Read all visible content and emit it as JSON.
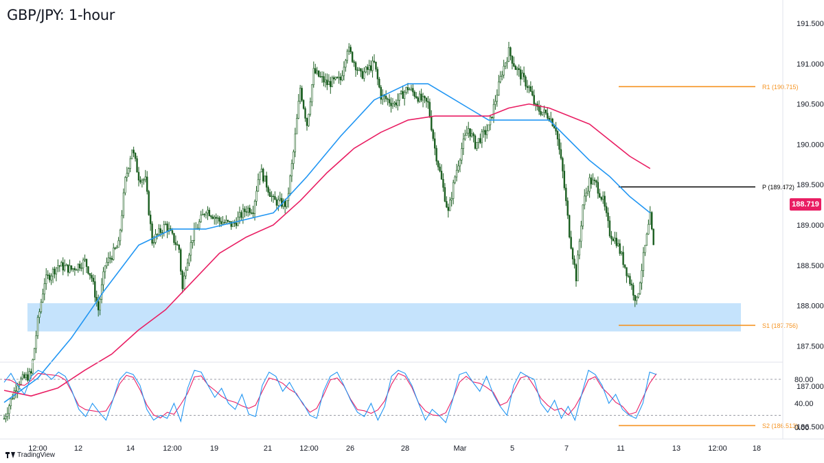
{
  "title": "GBP/JPY: 1-hour",
  "watermark_text": "TradingView",
  "current_price": "188.719",
  "colors": {
    "candle": "#1b5e20",
    "ema_fast": "#2196f3",
    "ema_slow": "#e91e63",
    "pivot_orange": "#f59321",
    "pivot_black": "#000000",
    "zone": "#bbdefb",
    "stoch_k": "#2196f3",
    "stoch_d": "#e91e63"
  },
  "chart_data": {
    "type": "candlestick",
    "symbol": "GBP/JPY",
    "timeframe": "1-hour",
    "y_axis": {
      "ticks": [
        "191.500",
        "191.000",
        "190.500",
        "190.000",
        "189.500",
        "189.000",
        "188.500",
        "188.000",
        "187.500",
        "187.000",
        "186.500"
      ],
      "range": [
        186.35,
        191.75
      ]
    },
    "x_axis": {
      "ticks": [
        "12:00",
        "12",
        "14",
        "12:00",
        "19",
        "21",
        "12:00",
        "26",
        "28",
        "Mar",
        "5",
        "7",
        "11",
        "13",
        "12:00",
        "18"
      ]
    },
    "levels": [
      {
        "label": "R1 (190.715)",
        "value": 190.715,
        "color": "orange"
      },
      {
        "label": "P (189.472)",
        "value": 189.472,
        "color": "black"
      },
      {
        "label": "S1 (187.756)",
        "value": 187.756,
        "color": "orange"
      },
      {
        "label": "S2 (186.513)",
        "value": 186.513,
        "color": "orange"
      }
    ],
    "support_zone": {
      "low": 187.68,
      "high": 188.03
    },
    "price_path": [
      [
        0,
        186.6
      ],
      [
        2,
        187.05
      ],
      [
        4,
        187.15
      ],
      [
        5,
        187.8
      ],
      [
        6,
        188.3
      ],
      [
        8,
        188.5
      ],
      [
        10,
        188.45
      ],
      [
        12,
        188.55
      ],
      [
        13,
        188.35
      ],
      [
        14,
        187.95
      ],
      [
        15,
        188.5
      ],
      [
        17,
        188.75
      ],
      [
        18,
        189.55
      ],
      [
        19,
        189.95
      ],
      [
        20,
        189.6
      ],
      [
        21,
        189.55
      ],
      [
        22,
        188.8
      ],
      [
        24,
        189.0
      ],
      [
        26,
        188.7
      ],
      [
        26.5,
        188.2
      ],
      [
        27,
        188.5
      ],
      [
        28,
        188.85
      ],
      [
        30,
        189.2
      ],
      [
        32,
        189.05
      ],
      [
        34,
        189.0
      ],
      [
        36,
        189.2
      ],
      [
        37,
        189.2
      ],
      [
        38,
        189.7
      ],
      [
        40,
        189.3
      ],
      [
        42,
        189.25
      ],
      [
        43,
        189.9
      ],
      [
        44,
        190.7
      ],
      [
        45,
        190.25
      ],
      [
        46,
        190.9
      ],
      [
        48,
        190.75
      ],
      [
        50,
        190.8
      ],
      [
        51,
        191.2
      ],
      [
        53,
        190.85
      ],
      [
        55,
        191.0
      ],
      [
        56,
        190.6
      ],
      [
        58,
        190.5
      ],
      [
        60,
        190.7
      ],
      [
        62,
        190.55
      ],
      [
        63,
        190.5
      ],
      [
        64,
        189.95
      ],
      [
        66,
        189.15
      ],
      [
        67,
        189.6
      ],
      [
        68,
        189.95
      ],
      [
        69,
        190.2
      ],
      [
        70,
        190.0
      ],
      [
        72,
        190.2
      ],
      [
        74,
        190.9
      ],
      [
        75,
        191.15
      ],
      [
        76,
        190.95
      ],
      [
        78,
        190.7
      ],
      [
        79,
        190.45
      ],
      [
        81,
        190.35
      ],
      [
        82,
        190.2
      ],
      [
        83,
        189.65
      ],
      [
        84,
        188.9
      ],
      [
        85,
        188.35
      ],
      [
        86,
        189.25
      ],
      [
        87,
        189.55
      ],
      [
        88,
        189.5
      ],
      [
        89,
        189.3
      ],
      [
        90,
        188.9
      ],
      [
        91,
        188.8
      ],
      [
        92,
        188.55
      ],
      [
        93,
        188.3
      ],
      [
        94,
        188.05
      ],
      [
        95,
        188.6
      ],
      [
        96,
        189.1
      ],
      [
        96.5,
        188.72
      ]
    ],
    "ema_fast": [
      [
        0,
        186.8
      ],
      [
        5,
        187.1
      ],
      [
        10,
        187.6
      ],
      [
        15,
        188.2
      ],
      [
        20,
        188.75
      ],
      [
        25,
        188.95
      ],
      [
        30,
        188.95
      ],
      [
        35,
        189.05
      ],
      [
        40,
        189.15
      ],
      [
        45,
        189.6
      ],
      [
        50,
        190.1
      ],
      [
        55,
        190.55
      ],
      [
        60,
        190.75
      ],
      [
        63,
        190.75
      ],
      [
        66,
        190.6
      ],
      [
        69,
        190.45
      ],
      [
        72,
        190.3
      ],
      [
        75,
        190.3
      ],
      [
        78,
        190.3
      ],
      [
        81,
        190.3
      ],
      [
        84,
        190.05
      ],
      [
        87,
        189.8
      ],
      [
        90,
        189.6
      ],
      [
        93,
        189.35
      ],
      [
        96,
        189.15
      ]
    ],
    "ema_slow": [
      [
        0,
        186.95
      ],
      [
        4,
        186.88
      ],
      [
        8,
        186.98
      ],
      [
        12,
        187.2
      ],
      [
        16,
        187.4
      ],
      [
        20,
        187.7
      ],
      [
        24,
        187.95
      ],
      [
        28,
        188.3
      ],
      [
        32,
        188.65
      ],
      [
        36,
        188.85
      ],
      [
        40,
        189.0
      ],
      [
        44,
        189.3
      ],
      [
        48,
        189.65
      ],
      [
        52,
        189.95
      ],
      [
        56,
        190.15
      ],
      [
        60,
        190.3
      ],
      [
        64,
        190.35
      ],
      [
        68,
        190.35
      ],
      [
        72,
        190.35
      ],
      [
        75,
        190.45
      ],
      [
        78,
        190.5
      ],
      [
        81,
        190.45
      ],
      [
        84,
        190.35
      ],
      [
        87,
        190.25
      ],
      [
        90,
        190.05
      ],
      [
        93,
        189.85
      ],
      [
        96,
        189.7
      ]
    ],
    "stochastic": {
      "ticks": [
        "80.00",
        "40.00",
        "0.00"
      ],
      "overbought": 80,
      "oversold": 20,
      "k": [
        75,
        90,
        70,
        55,
        85,
        95,
        90,
        80,
        92,
        85,
        60,
        30,
        18,
        40,
        25,
        12,
        45,
        80,
        92,
        88,
        70,
        30,
        12,
        20,
        15,
        40,
        10,
        65,
        95,
        92,
        70,
        50,
        65,
        40,
        30,
        55,
        22,
        18,
        70,
        92,
        85,
        60,
        75,
        55,
        40,
        20,
        15,
        60,
        85,
        92,
        70,
        45,
        25,
        18,
        40,
        12,
        35,
        85,
        95,
        90,
        70,
        40,
        12,
        30,
        20,
        8,
        45,
        88,
        92,
        75,
        60,
        85,
        55,
        35,
        20,
        70,
        92,
        85,
        80,
        40,
        25,
        45,
        15,
        35,
        12,
        55,
        95,
        88,
        70,
        40,
        55,
        30,
        20,
        15,
        40,
        92,
        88
      ]
    }
  }
}
